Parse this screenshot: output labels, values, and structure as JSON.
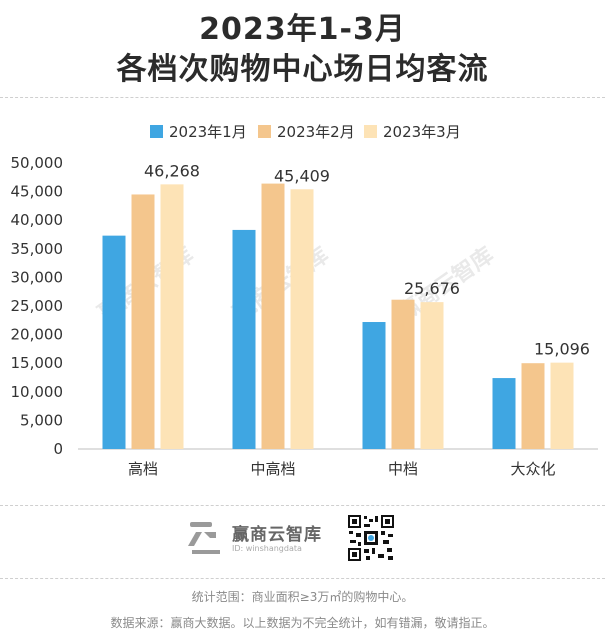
{
  "chart_data": {
    "type": "bar",
    "title_line1": "2023年1-3月",
    "title_line2": "各档次购物中心场日均客流",
    "categories": [
      "高档",
      "中高档",
      "中档",
      "大众化"
    ],
    "series": [
      {
        "name": "2023年1月",
        "values": [
          37300,
          38300,
          22200,
          12400
        ]
      },
      {
        "name": "2023年2月",
        "values": [
          44500,
          46400,
          26100,
          15000
        ]
      },
      {
        "name": "2023年3月",
        "values": [
          46268,
          45409,
          25676,
          15096
        ]
      }
    ],
    "data_labels": [
      "46,268",
      "45,409",
      "25,676",
      "15,096"
    ],
    "yticks": [
      "0",
      "5,000",
      "10,000",
      "15,000",
      "20,000",
      "25,000",
      "30,000",
      "35,000",
      "40,000",
      "45,000",
      "50,000"
    ],
    "ylim": [
      0,
      50000
    ],
    "legend_position": "top-center",
    "colors": [
      "#3fa6e2",
      "#f4c68d",
      "#fde3b6"
    ],
    "watermark": "赢商云智库"
  },
  "brand": {
    "name": "赢商云智库",
    "id": "ID: winshangdata",
    "icon": "winshang-logo-icon"
  },
  "qr": {
    "icon": "qr-code-icon"
  },
  "footer": {
    "scope": "统计范围：商业面积≥3万㎡的购物中心。",
    "source": "数据来源：赢商大数据。以上数据为不完全统计，如有错漏，敬请指正。"
  }
}
